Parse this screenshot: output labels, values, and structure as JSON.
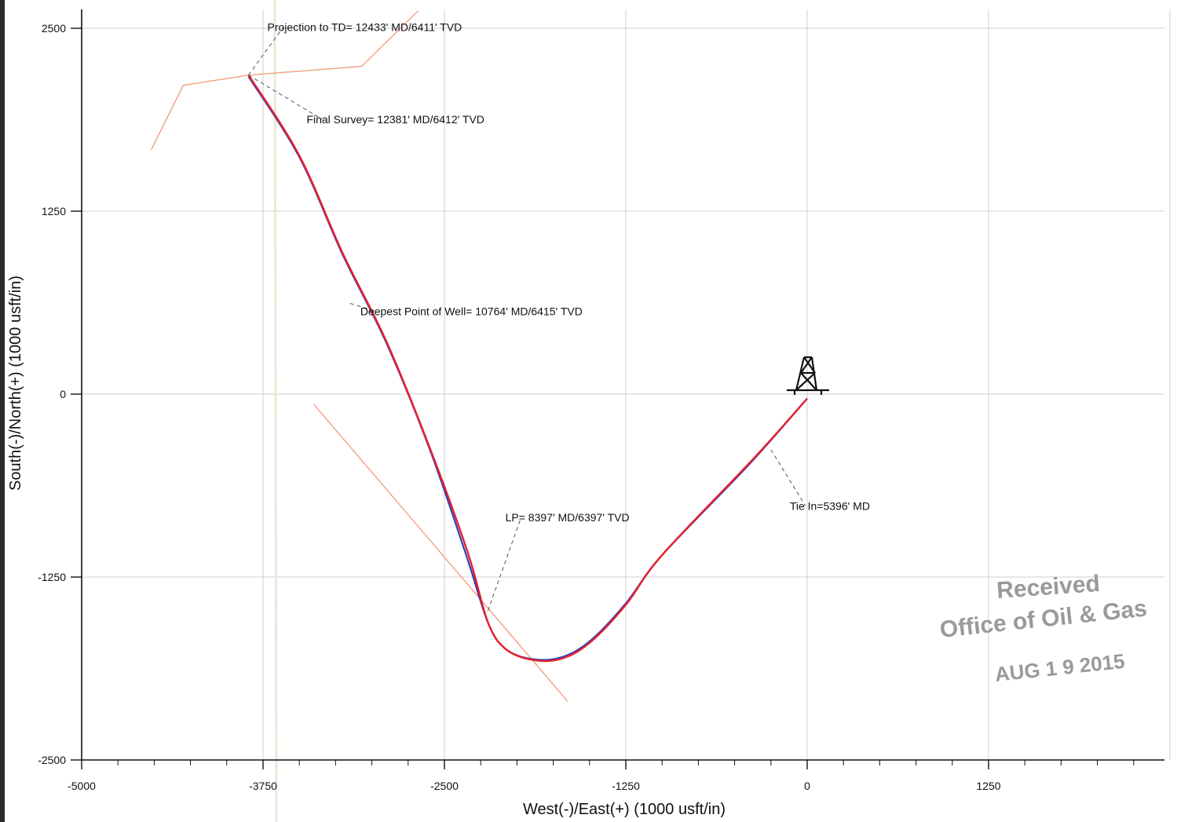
{
  "chart_data": {
    "type": "line",
    "title": "",
    "xlabel": "West(-)/East(+) (1000 usft/in)",
    "ylabel": "South(-)/North(+) (1000 usft/in)",
    "xlim": [
      -5000,
      2460
    ],
    "ylim": [
      -2500,
      2630
    ],
    "x_ticks": [
      -5000,
      -3750,
      -2500,
      -1250,
      0,
      1250
    ],
    "y_ticks": [
      2500,
      1250,
      0,
      -1250,
      -2500
    ],
    "x_tick_labels": [
      "-5000",
      "-3750",
      "-2500",
      "-1250",
      "0",
      "1250"
    ],
    "y_tick_labels": [
      "2500",
      "1250",
      "0",
      "-1250",
      "-2500"
    ],
    "grid": true,
    "colors": {
      "plan": "#2b3fbf",
      "actual": "#e8202a",
      "limits": "#f0a080"
    },
    "series": [
      {
        "key": "plan",
        "x": [
          0,
          -400,
          -1000,
          -1250,
          -1500,
          -1700,
          -1900,
          -2080,
          -2200,
          -2350,
          -2600,
          -2900,
          -3200,
          -3500,
          -3850
        ],
        "y": [
          -30,
          -480,
          -1100,
          -1430,
          -1690,
          -1800,
          -1810,
          -1740,
          -1560,
          -1100,
          -380,
          350,
          950,
          1620,
          2170
        ]
      },
      {
        "key": "actual",
        "x": [
          0,
          -350,
          -1000,
          -1250,
          -1500,
          -1700,
          -1900,
          -2080,
          -2200,
          -2340,
          -2600,
          -2900,
          -3200,
          -3500,
          -3850
        ],
        "y": [
          -30,
          -420,
          -1100,
          -1440,
          -1700,
          -1810,
          -1815,
          -1740,
          -1560,
          -1080,
          -370,
          360,
          960,
          1630,
          2180
        ]
      }
    ],
    "limit_lines": [
      {
        "x": [
          -4520,
          -4300,
          -3850,
          -3070,
          -2680
        ],
        "y": [
          1670,
          2110,
          2180,
          2240,
          2620
        ]
      },
      {
        "x": [
          -3400,
          -1650
        ],
        "y": [
          -70,
          -2100
        ]
      }
    ],
    "annotations": [
      {
        "text": "Projection to TD= 12433' MD/6411' TVD",
        "x": -3850,
        "y": 2180,
        "label_x": -3720,
        "label_y": 2480
      },
      {
        "text": "Final Survey= 12381' MD/6412' TVD",
        "x": -3850,
        "y": 2180,
        "label_x": -3450,
        "label_y": 1850
      },
      {
        "text": "Deepest Point of Well= 10764' MD/6415' TVD",
        "x": -3150,
        "y": 620,
        "label_x": -3080,
        "label_y": 540
      },
      {
        "text": "LP= 8397' MD/6397' TVD",
        "x": -2200,
        "y": -1480,
        "label_x": -2080,
        "label_y": -870
      },
      {
        "text": "Tie In=5396' MD",
        "x": -250,
        "y": -380,
        "label_x": -120,
        "label_y": -790
      }
    ],
    "rig_icon": {
      "name": "drilling-rig-icon",
      "x": 0,
      "y": 0
    },
    "stamp": {
      "line1": "Received",
      "line2": "Office of Oil & Gas",
      "line3": "AUG 1 9 2015"
    }
  }
}
